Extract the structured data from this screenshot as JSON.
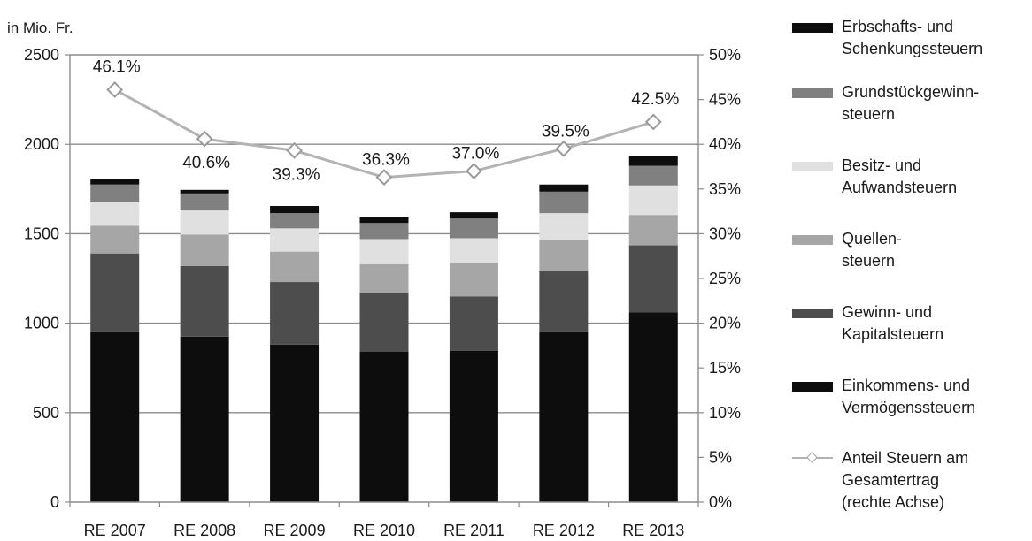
{
  "chart_data": {
    "type": "bar",
    "stacked": true,
    "ylabel": "in Mio. Fr.",
    "categories": [
      "RE 2007",
      "RE 2008",
      "RE 2009",
      "RE 2010",
      "RE 2011",
      "RE 2012",
      "RE 2013"
    ],
    "ylim": [
      0,
      2500
    ],
    "yticks": [
      0,
      500,
      1000,
      1500,
      2000,
      2500
    ],
    "y2lim": [
      0,
      50
    ],
    "y2ticks": [
      "0%",
      "5%",
      "10%",
      "15%",
      "20%",
      "25%",
      "30%",
      "35%",
      "40%",
      "45%",
      "50%"
    ],
    "grid": true,
    "legend_position": "right",
    "series": [
      {
        "name": "Einkommens- und Vermögenssteuern",
        "color": "#0d0d0d",
        "values": [
          950,
          925,
          880,
          840,
          845,
          950,
          1060
        ]
      },
      {
        "name": "Gewinn- und Kapitalsteuern",
        "color": "#4d4d4d",
        "values": [
          440,
          395,
          350,
          330,
          305,
          340,
          375
        ]
      },
      {
        "name": "Quellen- steuern",
        "color": "#a6a6a6",
        "values": [
          155,
          175,
          170,
          160,
          185,
          175,
          170
        ]
      },
      {
        "name": "Besitz- und Aufwandsteuern",
        "color": "#e0e0e0",
        "values": [
          130,
          135,
          130,
          140,
          140,
          150,
          165
        ]
      },
      {
        "name": "Grundstückgewinn- steuern",
        "color": "#808080",
        "values": [
          100,
          95,
          85,
          90,
          110,
          120,
          110
        ]
      },
      {
        "name": "Erbschafts- und Schenkungssteuern",
        "color": "#0d0d0d",
        "values": [
          30,
          20,
          40,
          35,
          35,
          40,
          55
        ]
      }
    ],
    "line_series": {
      "name": "Anteil Steuern am Gesamtertrag (rechte Achse)",
      "color": "#b3b3b3",
      "axis": "right",
      "values": [
        46.1,
        40.6,
        39.3,
        36.3,
        37.0,
        39.5,
        42.5
      ],
      "labels": [
        "46.1%",
        "40.6%",
        "39.3%",
        "36.3%",
        "37.0%",
        "39.5%",
        "42.5%"
      ]
    }
  },
  "legend": {
    "items": [
      {
        "line1": "Erbschafts- und",
        "line2": "Schenkungssteuern",
        "color": "#0d0d0d"
      },
      {
        "line1": "Grundstückgewinn-",
        "line2": "steuern",
        "color": "#808080"
      },
      {
        "line1": "Besitz- und",
        "line2": "Aufwandsteuern",
        "color": "#e0e0e0"
      },
      {
        "line1": "Quellen-",
        "line2": "steuern",
        "color": "#a6a6a6"
      },
      {
        "line1": "Gewinn- und",
        "line2": "Kapitalsteuern",
        "color": "#4d4d4d"
      },
      {
        "line1": "Einkommens- und",
        "line2": "Vermögenssteuern",
        "color": "#0d0d0d"
      }
    ],
    "line_item": {
      "line1": "Anteil Steuern am",
      "line2": "Gesamtertrag",
      "line3": "(rechte Achse)"
    }
  }
}
